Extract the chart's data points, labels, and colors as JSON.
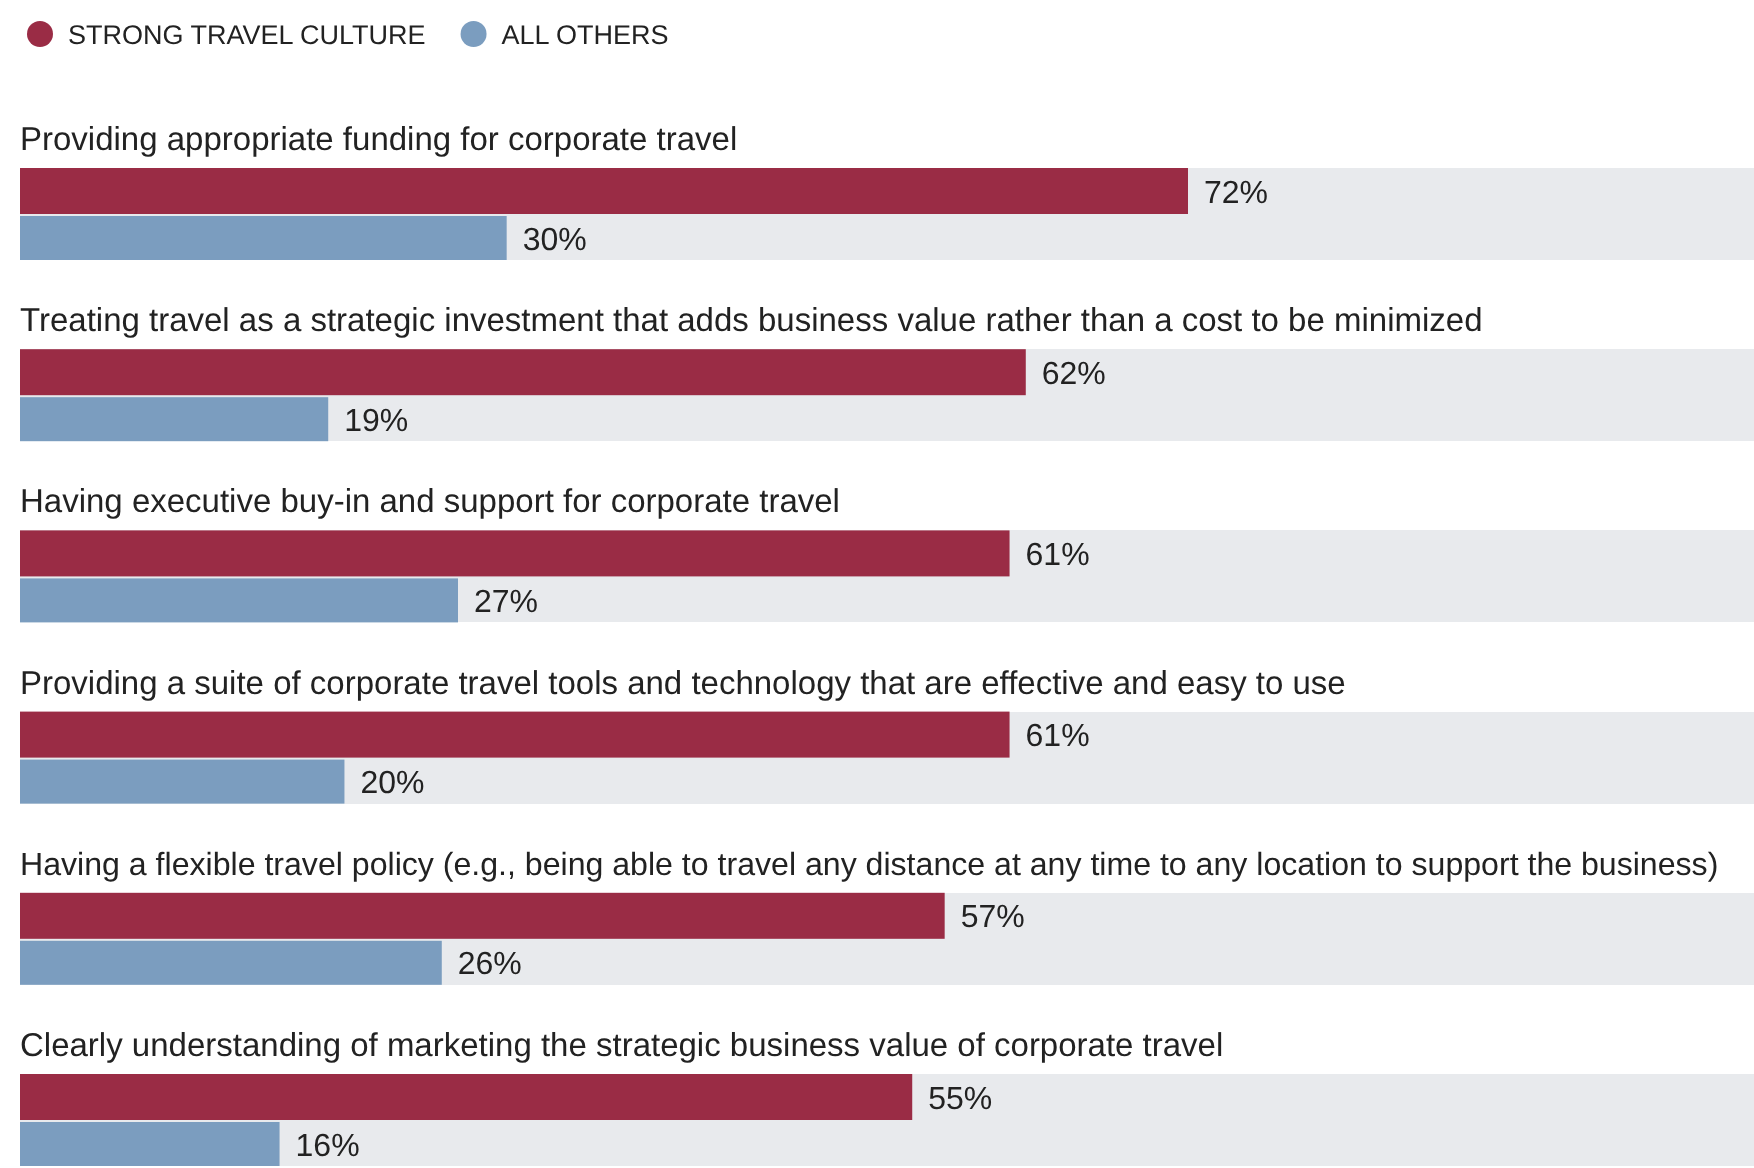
{
  "chart_data": {
    "type": "bar",
    "orientation": "horizontal",
    "categories": [
      "Providing appropriate funding for corporate travel",
      "Treating travel as a strategic investment that adds business value rather than a cost to be minimized",
      "Having executive buy-in and support for corporate travel",
      "Providing a suite of corporate travel tools and technology that are effective and easy to use",
      "Having a flexible travel policy (e.g., being able to travel any distance at any time to any location to support the business)",
      "Clearly understanding of marketing the strategic business value of corporate travel"
    ],
    "series": [
      {
        "name": "STRONG TRAVEL CULTURE",
        "color": "#9a2c45",
        "values": [
          72,
          62,
          61,
          61,
          57,
          55
        ],
        "value_labels": [
          "72%",
          "62%",
          "61%",
          "61%",
          "57%",
          "55%"
        ]
      },
      {
        "name": "ALL OTHERS",
        "color": "#7b9dbf",
        "values": [
          30,
          19,
          27,
          20,
          26,
          16
        ],
        "value_labels": [
          "30%",
          "19%",
          "27%",
          "20%",
          "26%",
          "16%"
        ]
      }
    ],
    "legend": "top left"
  }
}
